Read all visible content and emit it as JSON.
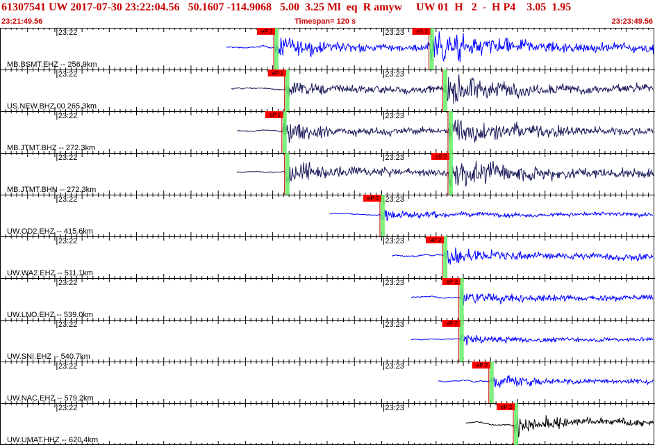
{
  "header": {
    "title": "61307541 UW 2017-07-30 23:22:04.56   50.1607 -114.9068   5.00  3.25 Ml  eq  R amyw     UW 01  H   2  -  H P4    3.05  1.95",
    "start_time": "23:21:49.56",
    "timespan": "Timespan= 120 s",
    "end_time": "23:23:49.56"
  },
  "colors": {
    "blue_trace": "#0000ff",
    "dark_trace": "#1a1a5a",
    "black_trace": "#000000",
    "pick_box": "#ff0000",
    "pick_window": "#66ee66"
  },
  "chart_data": {
    "type": "line",
    "title": "",
    "xlabel": "",
    "ylabel": "",
    "x_range_seconds": [
      0,
      120
    ],
    "minute_ticks": [
      {
        "label": "23:22",
        "t": 10.44
      },
      {
        "label": "23:23",
        "t": 70.44
      }
    ],
    "series": [
      {
        "name": "MB.BSMT.EHZ -- 256.9km",
        "data_start": 41.5,
        "p_time": 50.5,
        "s_time": 79.0,
        "p_label": "eP 2",
        "s_label": "eS 2",
        "color": "blue_trace",
        "amp": 0.55
      },
      {
        "name": "US.NEW.BHZ.00 265.3km",
        "data_start": 42.5,
        "p_time": 52.5,
        "s_time": 81.5,
        "p_label": "eP 1",
        "s_label": "",
        "color": "dark_trace",
        "amp": 0.5
      },
      {
        "name": "MB.JTMT.BHZ -- 272.3km",
        "data_start": 43.5,
        "p_time": 52.0,
        "s_time": 82.5,
        "p_label": "eP 1",
        "s_label": "",
        "color": "dark_trace",
        "amp": 0.5
      },
      {
        "name": "MB.JTMT.BHN -- 272.3km",
        "data_start": 43.5,
        "p_time": 52.5,
        "s_time": 82.5,
        "p_label": "",
        "s_label": "eS 2",
        "color": "dark_trace",
        "amp": 0.55
      },
      {
        "name": "UW.OD2.EHZ -- 415.6km",
        "data_start": 60.5,
        "p_time": 70.0,
        "s_time": 0,
        "p_label": "eP 2",
        "s_label": "",
        "color": "blue_trace",
        "amp": 0.3
      },
      {
        "name": "UW.WA2.EHZ -- 511.1km",
        "data_start": 72.0,
        "p_time": 81.5,
        "s_time": 0,
        "p_label": "eP 2",
        "s_label": "",
        "color": "blue_trace",
        "amp": 0.5
      },
      {
        "name": "UW.LNO.EHZ -- 539.0km",
        "data_start": 75.5,
        "p_time": 84.5,
        "s_time": 0,
        "p_label": "eP 2",
        "s_label": "",
        "color": "blue_trace",
        "amp": 0.4
      },
      {
        "name": "UW.SNI.EHZ -- 540.7km",
        "data_start": 75.5,
        "p_time": 84.5,
        "s_time": 0,
        "p_label": "eP 2",
        "s_label": "",
        "color": "blue_trace",
        "amp": 0.3
      },
      {
        "name": "UW.NAC.EHZ -- 579.2km",
        "data_start": 80.5,
        "p_time": 90.0,
        "s_time": 0,
        "p_label": "eP 2",
        "s_label": "",
        "color": "blue_trace",
        "amp": 0.4
      },
      {
        "name": "UW.UMAT.HHZ -- 620.4km",
        "data_start": 85.5,
        "p_time": 94.5,
        "s_time": 0,
        "p_label": "eP 2",
        "s_label": "",
        "color": "black_trace",
        "amp": 0.5
      }
    ]
  }
}
